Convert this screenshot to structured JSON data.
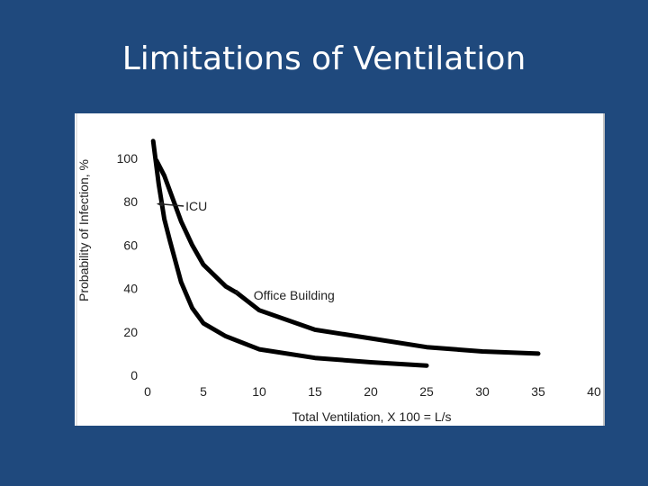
{
  "slide": {
    "title": "Limitations of Ventilation"
  },
  "chart_data": {
    "type": "line",
    "xlabel": "Total Ventilation,  X 100 = L/s",
    "ylabel": "Probability of Infection, %",
    "xlim": [
      0,
      40
    ],
    "ylim": [
      0,
      100
    ],
    "x_ticks": [
      0,
      5,
      10,
      15,
      20,
      25,
      30,
      35,
      40
    ],
    "y_ticks": [
      0,
      20,
      40,
      60,
      80,
      100
    ],
    "grid": false,
    "series": [
      {
        "name": "ICU",
        "x": [
          0.5,
          1,
          1.5,
          2,
          3,
          4,
          5,
          7,
          10,
          15,
          20,
          25
        ],
        "y": [
          108,
          88,
          72,
          62,
          43,
          31,
          24,
          18,
          12,
          8,
          6,
          4.5
        ]
      },
      {
        "name": "Office Building",
        "x": [
          0.8,
          1.5,
          2,
          3,
          4,
          5,
          7,
          8,
          10,
          15,
          20,
          25,
          30,
          35
        ],
        "y": [
          99,
          92,
          85,
          71,
          60,
          51,
          41,
          38,
          30,
          21,
          17,
          13,
          11,
          10
        ]
      }
    ],
    "annotations": [
      {
        "text": "ICU",
        "target_x": 0.8,
        "target_y": 79,
        "label_x": 3.4,
        "label_y": 78
      },
      {
        "text": "Office Building",
        "target_x": 8,
        "target_y": 38,
        "label_x": 9.5,
        "label_y": 37
      }
    ],
    "line_color": "#000000"
  }
}
